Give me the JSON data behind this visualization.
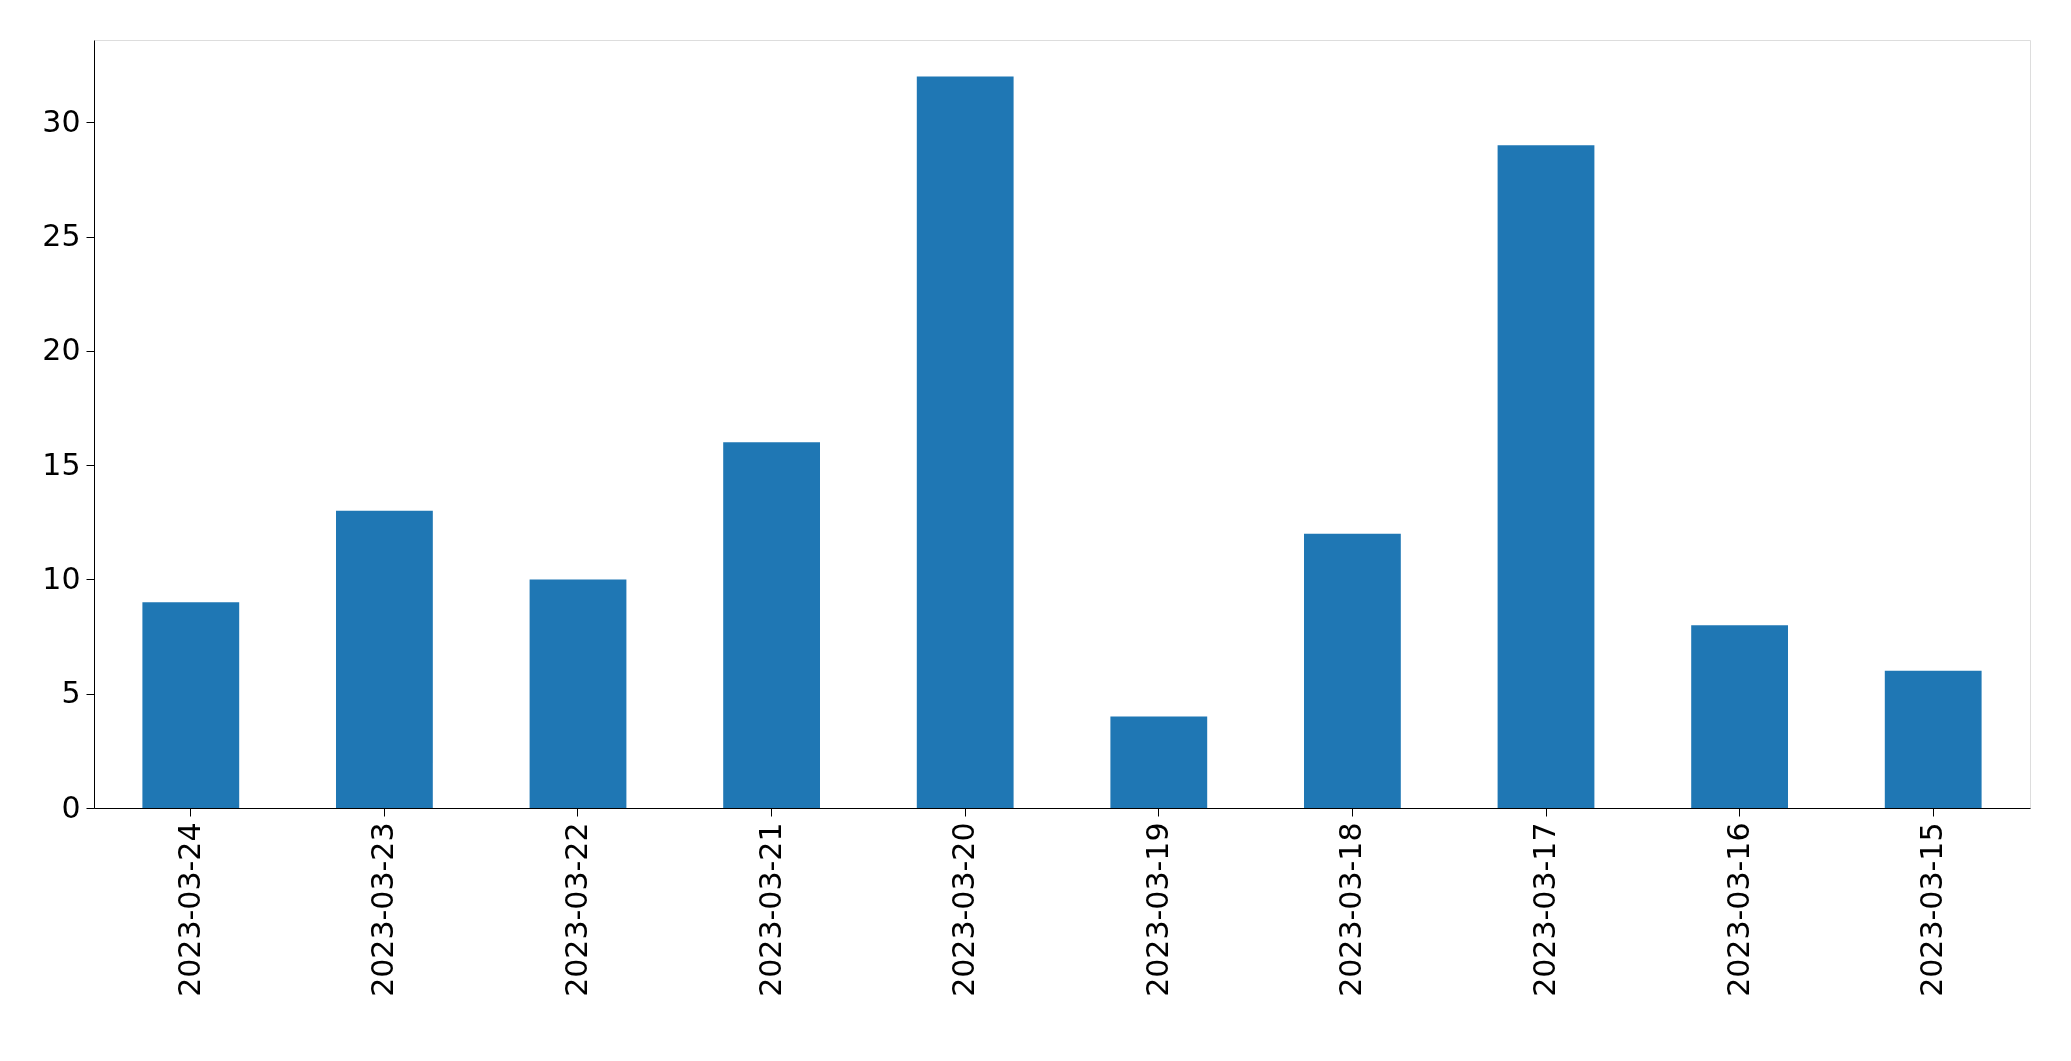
{
  "chart_data": {
    "type": "bar",
    "categories": [
      "2023-03-24",
      "2023-03-23",
      "2023-03-22",
      "2023-03-21",
      "2023-03-20",
      "2023-03-19",
      "2023-03-18",
      "2023-03-17",
      "2023-03-16",
      "2023-03-15"
    ],
    "values": [
      9,
      13,
      10,
      16,
      32,
      4,
      12,
      29,
      8,
      6
    ],
    "color": "#1f77b4",
    "ylim": [
      0,
      33.6
    ],
    "yticks": [
      0,
      5,
      10,
      15,
      20,
      25,
      30
    ]
  }
}
